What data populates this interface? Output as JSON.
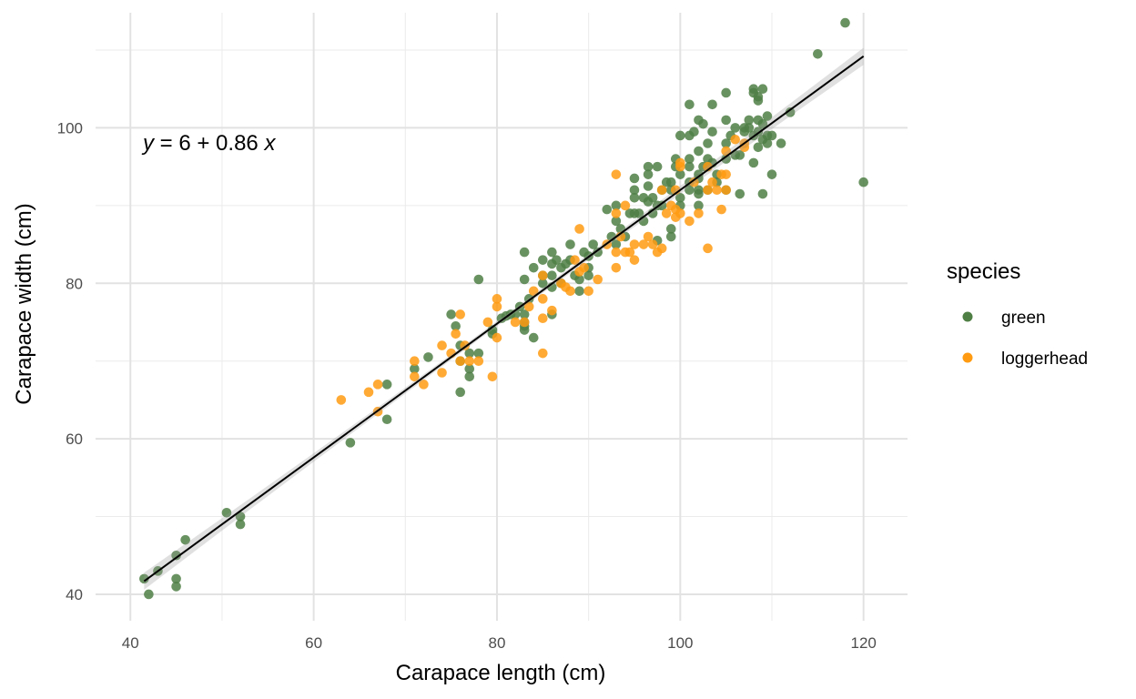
{
  "chart_data": {
    "type": "scatter",
    "xlabel": "Carapace length (cm)",
    "ylabel": "Carapace width (cm)",
    "xlim": [
      36.2,
      124.8
    ],
    "ylim": [
      36.6,
      114.8
    ],
    "x_ticks": [
      40,
      60,
      80,
      100,
      120
    ],
    "y_ticks": [
      40,
      60,
      80,
      100
    ],
    "grid": true,
    "legend": {
      "title": "species",
      "placement": "right",
      "entries": [
        {
          "label": "green",
          "color": "#4f7f45"
        },
        {
          "label": "loggerhead",
          "color": "#ff9b12"
        }
      ]
    },
    "annotation": {
      "text_y": "y",
      "text_rest": " = 6 + 0.86 ",
      "text_x": "x",
      "at": [
        43,
        100
      ]
    },
    "fit": {
      "intercept": 6,
      "slope": 0.86,
      "x_range": [
        41.5,
        120
      ],
      "se_band": 0.55
    },
    "series": [
      {
        "name": "green",
        "color": "#4f7f45",
        "points": [
          [
            41.5,
            42
          ],
          [
            42,
            40
          ],
          [
            43,
            43
          ],
          [
            45,
            45
          ],
          [
            45,
            42
          ],
          [
            45,
            41
          ],
          [
            46,
            47
          ],
          [
            50.5,
            50.5
          ],
          [
            52,
            50
          ],
          [
            52,
            49
          ],
          [
            64,
            59.5
          ],
          [
            68,
            67
          ],
          [
            68,
            62.5
          ],
          [
            71,
            69
          ],
          [
            72.5,
            70.5
          ],
          [
            75,
            76
          ],
          [
            75.5,
            74.5
          ],
          [
            76,
            72
          ],
          [
            76,
            70
          ],
          [
            76,
            66
          ],
          [
            77,
            71
          ],
          [
            77,
            69
          ],
          [
            77,
            68
          ],
          [
            78,
            80.5
          ],
          [
            78,
            71
          ],
          [
            79.5,
            74
          ],
          [
            79.5,
            73.5
          ],
          [
            80.5,
            75.5
          ],
          [
            81,
            75.8
          ],
          [
            81.5,
            76
          ],
          [
            82,
            76
          ],
          [
            82.5,
            77
          ],
          [
            83,
            84
          ],
          [
            83,
            80.5
          ],
          [
            83,
            76
          ],
          [
            83,
            75
          ],
          [
            83,
            74.5
          ],
          [
            83,
            74
          ],
          [
            83.5,
            78
          ],
          [
            84,
            82
          ],
          [
            84,
            73
          ],
          [
            85,
            83
          ],
          [
            85,
            81
          ],
          [
            85,
            80
          ],
          [
            86,
            84
          ],
          [
            86,
            82.5
          ],
          [
            86,
            81
          ],
          [
            86,
            79.5
          ],
          [
            86,
            76
          ],
          [
            86.5,
            83
          ],
          [
            87,
            82
          ],
          [
            87,
            80
          ],
          [
            87.5,
            82.5
          ],
          [
            88,
            85
          ],
          [
            88,
            83
          ],
          [
            88.5,
            81
          ],
          [
            89,
            80.5
          ],
          [
            89,
            79
          ],
          [
            89.5,
            84
          ],
          [
            90,
            83.5
          ],
          [
            90,
            82
          ],
          [
            90,
            81
          ],
          [
            90.5,
            85
          ],
          [
            91,
            84
          ],
          [
            92,
            89.5
          ],
          [
            92.5,
            86
          ],
          [
            93,
            90
          ],
          [
            93,
            88
          ],
          [
            93,
            85
          ],
          [
            93.5,
            87
          ],
          [
            94,
            86
          ],
          [
            94.5,
            89
          ],
          [
            95,
            93.5
          ],
          [
            95,
            92
          ],
          [
            95,
            91
          ],
          [
            95,
            89
          ],
          [
            95.5,
            89
          ],
          [
            96,
            91
          ],
          [
            96,
            88
          ],
          [
            96.5,
            95
          ],
          [
            96.5,
            94
          ],
          [
            96.5,
            92.5
          ],
          [
            96.5,
            90.5
          ],
          [
            97,
            91
          ],
          [
            97,
            89
          ],
          [
            97.5,
            95
          ],
          [
            97.5,
            90
          ],
          [
            97.5,
            85.5
          ],
          [
            98,
            92
          ],
          [
            98,
            90
          ],
          [
            98.5,
            93
          ],
          [
            99,
            93
          ],
          [
            99,
            92
          ],
          [
            99,
            87
          ],
          [
            99,
            86
          ],
          [
            99.5,
            96
          ],
          [
            99.5,
            95
          ],
          [
            100,
            99
          ],
          [
            100,
            94
          ],
          [
            100,
            91
          ],
          [
            100,
            90
          ],
          [
            101,
            103
          ],
          [
            101,
            99
          ],
          [
            101,
            96
          ],
          [
            101,
            95
          ],
          [
            101,
            93
          ],
          [
            101,
            92
          ],
          [
            101.5,
            99.5
          ],
          [
            102,
            101
          ],
          [
            102,
            97
          ],
          [
            102,
            94
          ],
          [
            102,
            93.5
          ],
          [
            102,
            92
          ],
          [
            102,
            91.5
          ],
          [
            102,
            90
          ],
          [
            102.5,
            100.5
          ],
          [
            102.5,
            95
          ],
          [
            103,
            98
          ],
          [
            103,
            96
          ],
          [
            103,
            95
          ],
          [
            103,
            92
          ],
          [
            103.5,
            103
          ],
          [
            103.5,
            99.5
          ],
          [
            103.5,
            95.5
          ],
          [
            104,
            94
          ],
          [
            104,
            93
          ],
          [
            105,
            104.5
          ],
          [
            105,
            101
          ],
          [
            105,
            98
          ],
          [
            105,
            96
          ],
          [
            105,
            92
          ],
          [
            105.5,
            99
          ],
          [
            106,
            100
          ],
          [
            106,
            96.5
          ],
          [
            106.5,
            96.5
          ],
          [
            106.5,
            91.5
          ],
          [
            107,
            100
          ],
          [
            107,
            99.5
          ],
          [
            107.5,
            101
          ],
          [
            107.5,
            100
          ],
          [
            108,
            105
          ],
          [
            108,
            104.5
          ],
          [
            108,
            99
          ],
          [
            108,
            95.5
          ],
          [
            108.5,
            104
          ],
          [
            108.5,
            103.5
          ],
          [
            108.5,
            101
          ],
          [
            108.5,
            99.5
          ],
          [
            108.5,
            97.5
          ],
          [
            109,
            105
          ],
          [
            109,
            100.5
          ],
          [
            109,
            98.5
          ],
          [
            109,
            91.5
          ],
          [
            109.5,
            101.5
          ],
          [
            109.5,
            99
          ],
          [
            109.5,
            98
          ],
          [
            110,
            99
          ],
          [
            110,
            94
          ],
          [
            111,
            98
          ],
          [
            112,
            102
          ],
          [
            115,
            109.5
          ],
          [
            118,
            113.5
          ],
          [
            120,
            93
          ]
        ]
      },
      {
        "name": "loggerhead",
        "color": "#ff9b12",
        "points": [
          [
            63,
            65
          ],
          [
            66,
            66
          ],
          [
            67,
            67
          ],
          [
            67,
            63.5
          ],
          [
            71,
            70
          ],
          [
            71,
            68
          ],
          [
            72,
            67
          ],
          [
            74,
            72
          ],
          [
            74,
            68.5
          ],
          [
            75,
            71
          ],
          [
            75.5,
            73.5
          ],
          [
            76,
            76
          ],
          [
            76,
            70
          ],
          [
            76.5,
            72
          ],
          [
            77,
            70
          ],
          [
            78,
            70
          ],
          [
            79,
            75
          ],
          [
            79.5,
            68
          ],
          [
            80,
            78
          ],
          [
            80,
            77
          ],
          [
            80,
            73
          ],
          [
            82,
            75
          ],
          [
            83,
            75
          ],
          [
            83.5,
            77
          ],
          [
            84,
            79
          ],
          [
            85,
            81
          ],
          [
            85,
            78
          ],
          [
            85,
            75.5
          ],
          [
            85,
            71
          ],
          [
            86,
            76.5
          ],
          [
            87,
            80
          ],
          [
            87.5,
            79.5
          ],
          [
            88,
            79
          ],
          [
            88.5,
            83
          ],
          [
            89,
            87
          ],
          [
            89,
            81.5
          ],
          [
            89.5,
            82
          ],
          [
            90,
            79
          ],
          [
            91,
            80.5
          ],
          [
            92,
            85
          ],
          [
            93,
            94
          ],
          [
            93,
            89
          ],
          [
            93,
            84
          ],
          [
            93,
            82
          ],
          [
            93.5,
            86
          ],
          [
            94,
            90
          ],
          [
            94,
            84
          ],
          [
            94.5,
            84
          ],
          [
            95,
            85
          ],
          [
            95,
            83
          ],
          [
            96,
            85
          ],
          [
            96.5,
            86
          ],
          [
            97,
            85
          ],
          [
            97.5,
            84
          ],
          [
            98,
            92
          ],
          [
            98,
            84.5
          ],
          [
            98.5,
            89
          ],
          [
            99,
            90
          ],
          [
            99.5,
            92
          ],
          [
            99.5,
            89.5
          ],
          [
            99.5,
            88.5
          ],
          [
            100,
            95.5
          ],
          [
            100,
            95
          ],
          [
            100,
            89
          ],
          [
            101,
            88
          ],
          [
            101.5,
            93
          ],
          [
            102,
            89
          ],
          [
            103,
            95
          ],
          [
            103,
            92
          ],
          [
            103,
            84.5
          ],
          [
            103.5,
            93
          ],
          [
            104,
            92
          ],
          [
            104.5,
            94
          ],
          [
            104.5,
            89.5
          ],
          [
            105,
            94
          ],
          [
            105,
            92
          ],
          [
            105,
            97
          ],
          [
            106,
            98.5
          ],
          [
            107,
            98
          ],
          [
            107,
            97.5
          ]
        ]
      }
    ]
  }
}
